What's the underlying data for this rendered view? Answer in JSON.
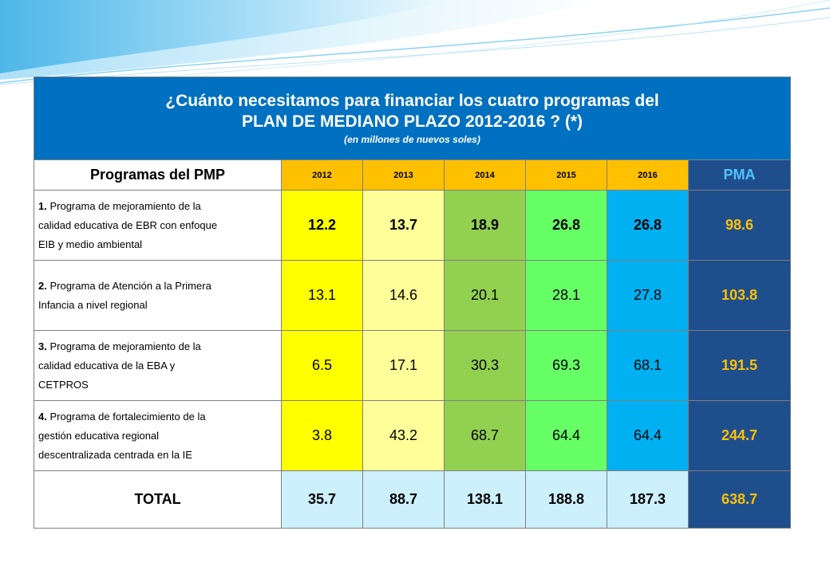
{
  "header": {
    "title_line1": "¿Cuánto necesitamos para financiar los cuatro programas del",
    "title_line2": "PLAN DE MEDIANO PLAZO 2012-2016  ? (*)",
    "subtitle": "(en  millones de nuevos soles)"
  },
  "columns": {
    "label": "Programas del PMP",
    "years": [
      "2012",
      "2013",
      "2014",
      "2015",
      "2016"
    ],
    "total": "PMA"
  },
  "rows": [
    {
      "number": "1.",
      "lines": [
        "Programa de mejoramiento de la",
        "calidad educativa de EBR con enfoque",
        "EIB y  medio ambiental"
      ],
      "values": [
        "12.2",
        "13.7",
        "18.9",
        "26.8",
        "26.8"
      ],
      "pma": "98.6",
      "bold_values": true
    },
    {
      "number": "2.",
      "lines": [
        "Programa de Atención a  la Primera",
        "Infancia a nivel regional"
      ],
      "values": [
        "13.1",
        "14.6",
        "20.1",
        "28.1",
        "27.8"
      ],
      "pma": "103.8",
      "bold_values": false
    },
    {
      "number": "3.",
      "lines": [
        "Programa de mejoramiento de la",
        "calidad educativa de  la EBA y",
        "CETPROS"
      ],
      "values": [
        "6.5",
        "17.1",
        "30.3",
        "69.3",
        "68.1"
      ],
      "pma": "191.5",
      "bold_values": false
    },
    {
      "number": "4.",
      "lines": [
        "Programa de fortalecimiento de la",
        "gestión educativa regional",
        "descentralizada centrada en la IE"
      ],
      "values": [
        "3.8",
        "43.2",
        "68.7",
        "64.4",
        "64.4"
      ],
      "pma": "244.7",
      "bold_values": false
    }
  ],
  "total_row": {
    "label": "TOTAL",
    "values": [
      "35.7",
      "88.7",
      "138.1",
      "188.8",
      "187.3"
    ],
    "pma": "638.7"
  },
  "colors": {
    "title_bg": "#0070c0",
    "year_header_bg": "#ffc000",
    "col_2012": "#ffff00",
    "col_2013": "#ffff99",
    "col_2014": "#92d050",
    "col_2015": "#66ff66",
    "col_2016": "#00b0f0",
    "pma_bg": "#1f4e8c",
    "pma_text": "#ffc000",
    "total_bg": "#ccf0fc"
  }
}
